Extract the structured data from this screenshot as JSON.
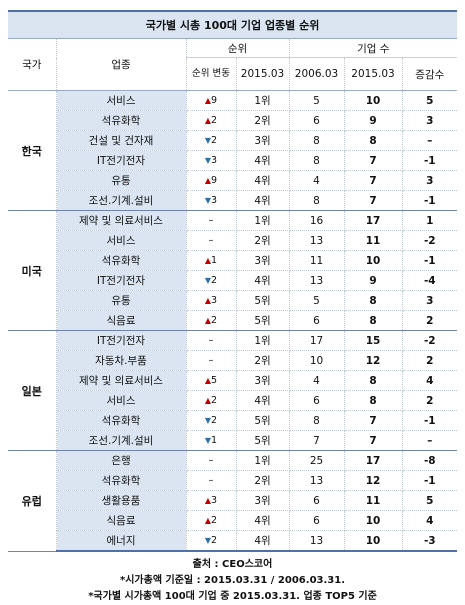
{
  "title": "국가별 시총 100대 기업 업종별 순위",
  "headers": {
    "country": "국가",
    "industry": "업종",
    "rank": "순위",
    "company_count": "기업 수",
    "rank_change": "순위 변동",
    "y2015": "2015.03",
    "y2006": "2006.03",
    "y2015b": "2015.03",
    "delta": "증감수"
  },
  "groups": [
    {
      "country": "한국",
      "rows": [
        {
          "industry": "서비스",
          "change_dir": "up",
          "change": "9",
          "rank": "1위",
          "c2006": "5",
          "c2015": "10",
          "delta": "5"
        },
        {
          "industry": "석유화학",
          "change_dir": "up",
          "change": "2",
          "rank": "2위",
          "c2006": "6",
          "c2015": "9",
          "delta": "3"
        },
        {
          "industry": "건설 및 건자재",
          "change_dir": "down",
          "change": "2",
          "rank": "3위",
          "c2006": "8",
          "c2015": "8",
          "delta": "–"
        },
        {
          "industry": "IT전기전자",
          "change_dir": "down",
          "change": "3",
          "rank": "4위",
          "c2006": "8",
          "c2015": "7",
          "delta": "-1"
        },
        {
          "industry": "유통",
          "change_dir": "up",
          "change": "9",
          "rank": "4위",
          "c2006": "4",
          "c2015": "7",
          "delta": "3"
        },
        {
          "industry": "조선.기계.설비",
          "change_dir": "down",
          "change": "3",
          "rank": "4위",
          "c2006": "8",
          "c2015": "7",
          "delta": "-1"
        }
      ]
    },
    {
      "country": "미국",
      "rows": [
        {
          "industry": "제약 및 의료서비스",
          "change_dir": "none",
          "change": "–",
          "rank": "1위",
          "c2006": "16",
          "c2015": "17",
          "delta": "1"
        },
        {
          "industry": "서비스",
          "change_dir": "none",
          "change": "–",
          "rank": "2위",
          "c2006": "13",
          "c2015": "11",
          "delta": "-2"
        },
        {
          "industry": "석유화학",
          "change_dir": "up",
          "change": "1",
          "rank": "3위",
          "c2006": "11",
          "c2015": "10",
          "delta": "-1"
        },
        {
          "industry": "IT전기전자",
          "change_dir": "down",
          "change": "2",
          "rank": "4위",
          "c2006": "13",
          "c2015": "9",
          "delta": "-4"
        },
        {
          "industry": "유통",
          "change_dir": "up",
          "change": "3",
          "rank": "5위",
          "c2006": "5",
          "c2015": "8",
          "delta": "3"
        },
        {
          "industry": "식음료",
          "change_dir": "up",
          "change": "2",
          "rank": "5위",
          "c2006": "6",
          "c2015": "8",
          "delta": "2"
        }
      ]
    },
    {
      "country": "일본",
      "rows": [
        {
          "industry": "IT전기전자",
          "change_dir": "none",
          "change": "–",
          "rank": "1위",
          "c2006": "17",
          "c2015": "15",
          "delta": "-2"
        },
        {
          "industry": "자동차.부품",
          "change_dir": "none",
          "change": "–",
          "rank": "2위",
          "c2006": "10",
          "c2015": "12",
          "delta": "2"
        },
        {
          "industry": "제약 및 의료서비스",
          "change_dir": "up",
          "change": "5",
          "rank": "3위",
          "c2006": "4",
          "c2015": "8",
          "delta": "4"
        },
        {
          "industry": "서비스",
          "change_dir": "up",
          "change": "2",
          "rank": "4위",
          "c2006": "6",
          "c2015": "8",
          "delta": "2"
        },
        {
          "industry": "석유화학",
          "change_dir": "down",
          "change": "2",
          "rank": "5위",
          "c2006": "8",
          "c2015": "7",
          "delta": "-1"
        },
        {
          "industry": "조선.기계.설비",
          "change_dir": "down",
          "change": "1",
          "rank": "5위",
          "c2006": "7",
          "c2015": "7",
          "delta": "–"
        }
      ]
    },
    {
      "country": "유럽",
      "rows": [
        {
          "industry": "은행",
          "change_dir": "none",
          "change": "–",
          "rank": "1위",
          "c2006": "25",
          "c2015": "17",
          "delta": "-8"
        },
        {
          "industry": "석유화학",
          "change_dir": "none",
          "change": "–",
          "rank": "2위",
          "c2006": "13",
          "c2015": "12",
          "delta": "-1"
        },
        {
          "industry": "생활용품",
          "change_dir": "up",
          "change": "3",
          "rank": "3위",
          "c2006": "6",
          "c2015": "11",
          "delta": "5"
        },
        {
          "industry": "식음료",
          "change_dir": "up",
          "change": "2",
          "rank": "4위",
          "c2006": "6",
          "c2015": "10",
          "delta": "4"
        },
        {
          "industry": "에너지",
          "change_dir": "down",
          "change": "2",
          "rank": "4위",
          "c2006": "13",
          "c2015": "10",
          "delta": "-3"
        }
      ]
    }
  ],
  "footer": {
    "source": "출처 : CEO스코어",
    "note1": "*시가총액 기준일 : 2015.03.31 / 2006.03.31.",
    "note2": "*국가별 시가총액 100대 기업 중 2015.03.31. 업종 TOP5 기준"
  },
  "colors": {
    "up": "#c00000",
    "down": "#31709c",
    "header_bg": "#dbe5f1",
    "border": "#4f6fa6"
  }
}
